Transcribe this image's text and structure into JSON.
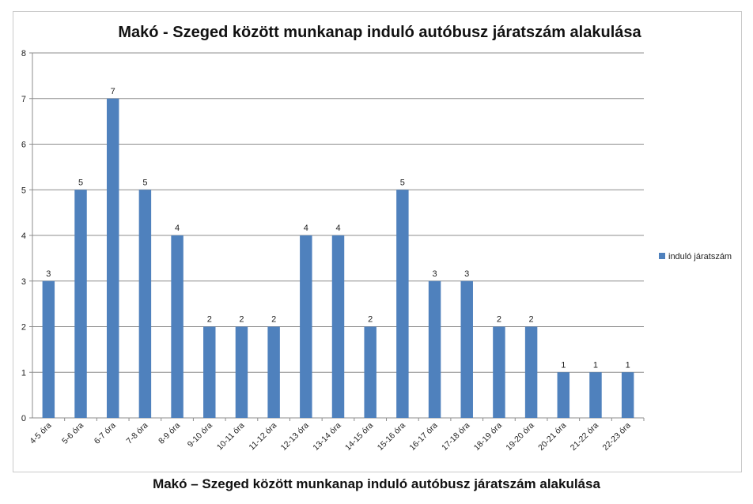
{
  "chart_data": {
    "type": "bar",
    "title": "Makó - Szeged között munkanap induló autóbusz járatszám alakulása",
    "categories": [
      "4-5 óra",
      "5-6 óra",
      "6-7 óra",
      "7-8 óra",
      "8-9 óra",
      "9-10 óra",
      "10-11 óra",
      "11-12 óra",
      "12-13 óra",
      "13-14 óra",
      "14-15 óra",
      "15-16 óra",
      "16-17 óra",
      "17-18 óra",
      "18-19 óra",
      "19-20 óra",
      "20-21 óra",
      "21-22 óra",
      "22-23 óra"
    ],
    "series": [
      {
        "name": "induló járatszám",
        "values": [
          3,
          5,
          7,
          5,
          4,
          2,
          2,
          2,
          4,
          4,
          2,
          5,
          3,
          3,
          2,
          2,
          1,
          1,
          1
        ],
        "color": "#4f81bd"
      }
    ],
    "ylim": [
      0,
      8
    ],
    "yticks": [
      0,
      1,
      2,
      3,
      4,
      5,
      6,
      7,
      8
    ],
    "grid": true,
    "legend_position": "right",
    "data_labels": true
  },
  "caption": "Makó – Szeged között munkanap induló autóbusz járatszám alakulása"
}
